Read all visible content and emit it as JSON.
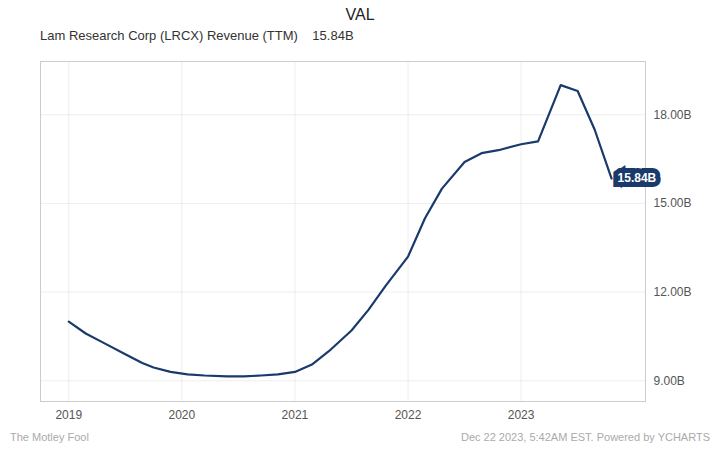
{
  "chart_data": {
    "type": "line",
    "title": "VAL",
    "subtitle": "Lam Research Corp (LRCX) Revenue (TTM)    15.84B",
    "footer": [
      "The Motley Fool",
      "Dec 22 2023, 5:42AM EST.  Powered by YCHARTS"
    ],
    "x": [
      2019.0,
      2019.15,
      2019.3,
      2019.5,
      2019.65,
      2019.75,
      2019.9,
      2020.05,
      2020.2,
      2020.4,
      2020.55,
      2020.7,
      2020.85,
      2021.0,
      2021.15,
      2021.3,
      2021.5,
      2021.65,
      2021.8,
      2022.0,
      2022.15,
      2022.3,
      2022.5,
      2022.65,
      2022.8,
      2023.0,
      2023.15,
      2023.35,
      2023.5,
      2023.65,
      2023.8
    ],
    "values": [
      11.0,
      10.6,
      10.3,
      9.9,
      9.6,
      9.45,
      9.3,
      9.22,
      9.18,
      9.15,
      9.15,
      9.18,
      9.22,
      9.3,
      9.55,
      10.0,
      10.7,
      11.4,
      12.2,
      13.2,
      14.5,
      15.5,
      16.4,
      16.7,
      16.8,
      17.0,
      17.1,
      19.0,
      18.8,
      17.5,
      15.84
    ],
    "color": "#1a3a6b",
    "xlim": [
      2018.75,
      2024.1
    ],
    "xticks": [
      2019,
      2020,
      2021,
      2022,
      2023
    ],
    "ylim": [
      8.3,
      19.8
    ],
    "yticks": [
      {
        "value": 9.0,
        "label": "9.00B"
      },
      {
        "value": 12.0,
        "label": "12.00B"
      },
      {
        "value": 15.0,
        "label": "15.00B"
      },
      {
        "value": 18.0,
        "label": "18.00B"
      }
    ],
    "annotations": [
      {
        "text": "15.84B",
        "x": 2023.8,
        "y": 15.84
      }
    ],
    "grid": true
  }
}
